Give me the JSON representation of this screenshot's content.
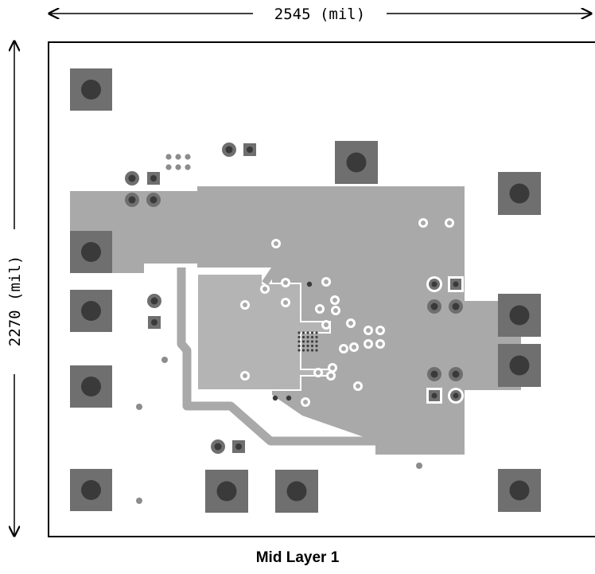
{
  "dimensions": {
    "width_label": "2545 (mil)",
    "height_label": "2270 (mil)"
  },
  "caption": "Mid Layer 1",
  "colors": {
    "copper": "#a9a9a9",
    "pad": "#6f6f6f",
    "hole": "#3a3a3a",
    "board_outline": "#000000"
  }
}
